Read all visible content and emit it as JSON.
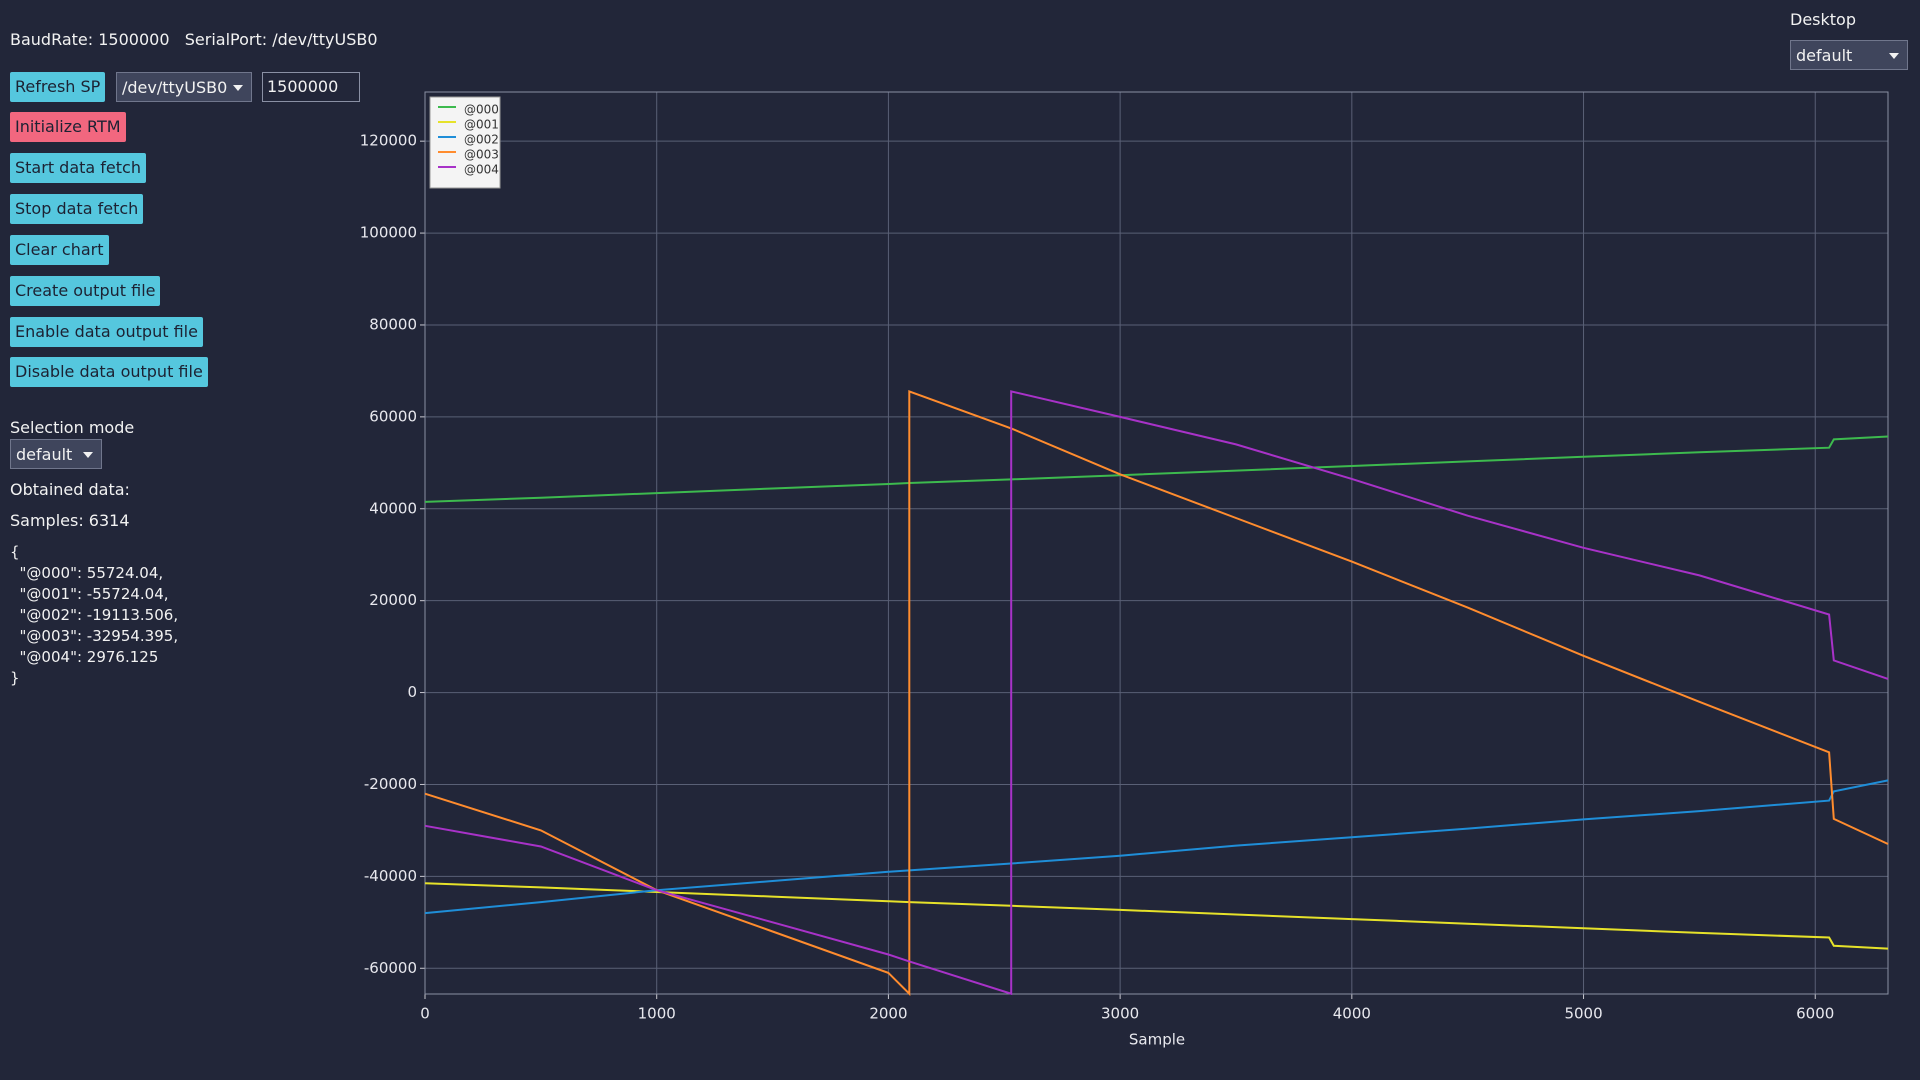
{
  "header": {
    "baud_rate": "BaudRate: 1500000",
    "serial_port": "SerialPort: /dev/ttyUSB0"
  },
  "controls": {
    "refresh": "Refresh SP",
    "port_select": "/dev/ttyUSB0",
    "baud_input": "1500000",
    "initialize": "Initialize RTM",
    "buttons": [
      "Start data fetch",
      "Stop data fetch",
      "Clear chart",
      "Create output file",
      "Enable data output file",
      "Disable data output file"
    ]
  },
  "selection_mode": {
    "label": "Selection mode",
    "value": "default"
  },
  "obtained": {
    "label": "Obtained data:",
    "samples": "Samples: 6314",
    "json_lines": [
      "{",
      "  \"@000\": 55724.04,",
      "  \"@001\": -55724.04,",
      "  \"@002\": -19113.506,",
      "  \"@003\": -32954.395,",
      "  \"@004\": 2976.125",
      "}"
    ]
  },
  "desktop": {
    "label": "Desktop",
    "value": "default"
  },
  "chart_data": {
    "type": "line",
    "x_label": "Sample",
    "xlim": [
      0,
      6314
    ],
    "ylim": [
      -65600,
      130700
    ],
    "xticks": [
      0,
      1000,
      2000,
      3000,
      4000,
      5000,
      6000
    ],
    "yticks": [
      -60000,
      -40000,
      -20000,
      0,
      20000,
      40000,
      60000,
      80000,
      100000,
      120000
    ],
    "grid": true,
    "legend": "upper left",
    "x": [
      0,
      500,
      1000,
      1500,
      2000,
      2090,
      2090,
      2530,
      2530,
      3000,
      3500,
      4000,
      4500,
      5000,
      5500,
      6060,
      6080,
      6314
    ],
    "series": [
      {
        "name": "@000",
        "color": "#3dba4e",
        "values": [
          41500,
          42400,
          43400,
          44400,
          45400,
          45600,
          45600,
          46400,
          46400,
          47300,
          48300,
          49300,
          50300,
          51300,
          52300,
          53300,
          55100,
          55724.04
        ]
      },
      {
        "name": "@001",
        "color": "#e6e22a",
        "values": [
          -41500,
          -42400,
          -43400,
          -44400,
          -45400,
          -45600,
          -45600,
          -46400,
          -46400,
          -47300,
          -48300,
          -49300,
          -50300,
          -51300,
          -52300,
          -53300,
          -55100,
          -55724.04
        ]
      },
      {
        "name": "@002",
        "color": "#1f8ed8",
        "values": [
          -48000,
          -45600,
          -43000,
          -41000,
          -39000,
          -38700,
          -38700,
          -37200,
          -37200,
          -35500,
          -33300,
          -31500,
          -29600,
          -27600,
          -25800,
          -23500,
          -21500,
          -19113.506
        ]
      },
      {
        "name": "@003",
        "color": "#ff8c2e",
        "values": [
          -22000,
          -30000,
          -43000,
          -52000,
          -61000,
          -65536,
          65535,
          57500,
          57500,
          47500,
          38000,
          28500,
          18500,
          8000,
          -2000,
          -13000,
          -27500,
          -32954.395
        ]
      },
      {
        "name": "@004",
        "color": "#a832c8",
        "values": [
          -29000,
          -33500,
          -43000,
          -50000,
          -57000,
          -58500,
          -58500,
          -65536,
          65535,
          60000,
          54000,
          46500,
          38500,
          31500,
          25500,
          17000,
          7000,
          2976.125
        ]
      }
    ]
  }
}
